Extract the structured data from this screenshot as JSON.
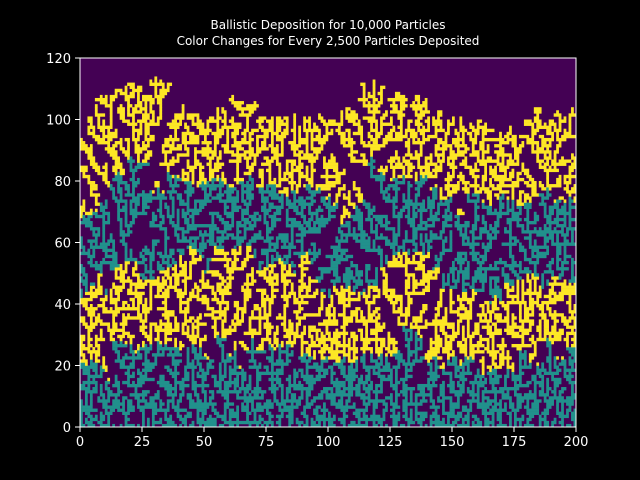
{
  "chart_data": {
    "type": "heatmap",
    "title_line1": "Ballistic Deposition for 10,000 Particles",
    "title_line2": "Color Changes for Every 2,500 Particles Deposited",
    "xlim": [
      0,
      200
    ],
    "ylim": [
      0,
      120
    ],
    "x_ticks": [
      "0",
      "25",
      "50",
      "75",
      "100",
      "125",
      "150",
      "175",
      "200"
    ],
    "y_ticks": [
      "0",
      "20",
      "40",
      "60",
      "80",
      "100",
      "120"
    ],
    "grid": false,
    "legend": "none",
    "colors": {
      "background": "#000000",
      "empty": "#440154",
      "teal": "#21918c",
      "yellow": "#fde725",
      "text": "#ffffff"
    },
    "layers": [
      {
        "particles": "0-2,500",
        "color": "teal",
        "mean_top": 25
      },
      {
        "particles": "2,500-5,000",
        "color": "yellow",
        "mean_top": 50
      },
      {
        "particles": "5,000-7,500",
        "color": "teal",
        "mean_top": 75
      },
      {
        "particles": "7,500-10,000",
        "color": "yellow",
        "mean_top": 100
      }
    ]
  }
}
